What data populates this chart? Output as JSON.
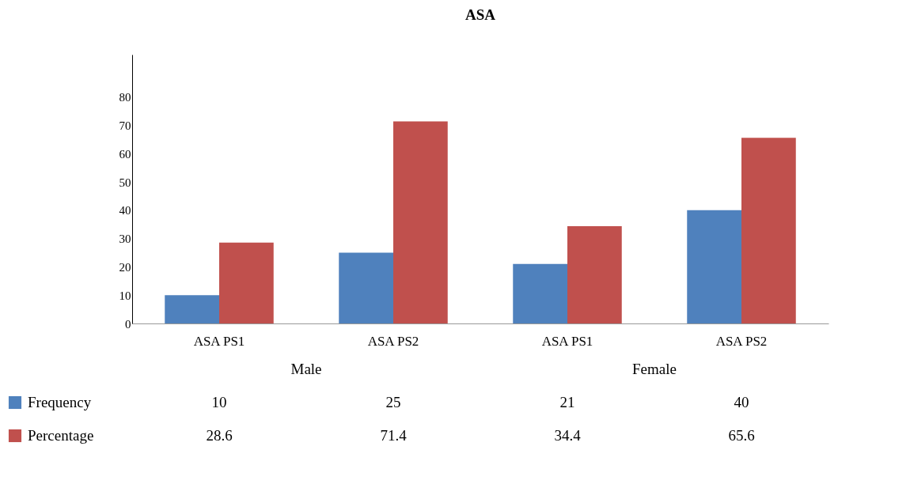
{
  "chart_data": {
    "type": "bar",
    "title": "ASA",
    "categories": [
      "ASA PS1",
      "ASA PS2",
      "ASA PS1",
      "ASA PS2"
    ],
    "annotations": [
      "Male",
      "Female"
    ],
    "series": [
      {
        "name": "Frequency",
        "color": "#4f81bd",
        "values": [
          10,
          25,
          21,
          40
        ]
      },
      {
        "name": "Percentage",
        "color": "#c0504d",
        "values": [
          28.6,
          71.4,
          34.4,
          65.6
        ]
      }
    ],
    "ylim": [
      0,
      95
    ],
    "yticks": [
      0,
      10,
      20,
      30,
      40,
      50,
      60,
      70,
      80
    ],
    "grid": false,
    "legend": "bottom",
    "data_labels": true
  }
}
